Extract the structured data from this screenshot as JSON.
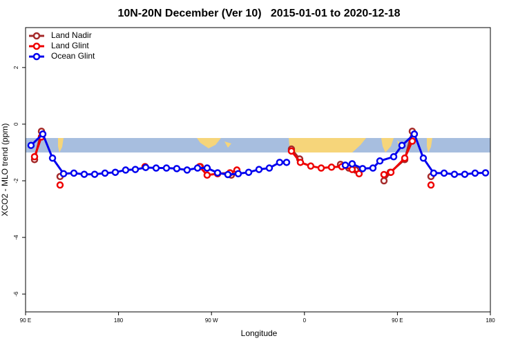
{
  "chart_data": {
    "type": "line",
    "title": "10N-20N December (Ver 10)   2015-01-01 to 2020-12-18",
    "x_label": "Longitude",
    "y_label": "XCO2 - MLO trend (ppm)",
    "xlim": [
      90,
      540
    ],
    "ylim": [
      -6.63,
      3.41
    ],
    "xticks": [
      {
        "value": 90,
        "label": "90 E"
      },
      180,
      {
        "value": 270,
        "label": "90 W"
      },
      {
        "value": 360,
        "label": "0"
      },
      {
        "value": 450,
        "label": "90 E"
      },
      {
        "value": 540,
        "label": "180"
      }
    ],
    "yticks": [
      -6,
      -4,
      -2,
      0,
      2
    ],
    "legend": "top-left",
    "series": [
      {
        "name": "Land Nadir",
        "color": "#a52a2a",
        "x": [
          98.7,
          105.4,
          null,
          123.4,
          null,
          259.2,
          null,
          289.2,
          null,
          347.4,
          355.4,
          null,
          394.9,
          402.9,
          409.6,
          null,
          437.0,
          443.0,
          457.1,
          464.4,
          null,
          482.5
        ],
        "values": [
          -1.25,
          -0.25,
          null,
          -1.85,
          null,
          -1.5,
          null,
          -1.8,
          null,
          -0.88,
          -1.23,
          null,
          -1.42,
          -1.55,
          -1.62,
          null,
          -2.0,
          -1.7,
          -1.25,
          -0.25,
          null,
          -1.85
        ]
      },
      {
        "name": "Land Glint",
        "color": "#ee0000",
        "x": [
          98.7,
          105.4,
          null,
          123.4,
          null,
          205.7,
          null,
          258.5,
          265.8,
          275.9,
          287.9,
          294.6,
          null,
          347.4,
          356.1,
          366.1,
          376.2,
          386.2,
          396.2,
          406.2,
          412.9,
          null,
          437.0,
          443.7,
          457.1,
          464.4,
          null,
          482.5
        ],
        "values": [
          -1.15,
          -0.45,
          null,
          -2.15,
          null,
          -1.5,
          null,
          -1.5,
          -1.8,
          -1.75,
          -1.72,
          -1.62,
          null,
          -0.95,
          -1.35,
          -1.48,
          -1.55,
          -1.52,
          -1.5,
          -1.6,
          -1.75,
          null,
          -1.78,
          -1.7,
          -1.2,
          -0.6,
          null,
          -2.15
        ]
      },
      {
        "name": "Ocean Glint",
        "color": "#0000ee",
        "x": [
          95.3,
          106.7,
          116.1,
          126.8,
          136.8,
          146.8,
          156.9,
          166.9,
          176.9,
          186.9,
          196.3,
          206.3,
          216.4,
          226.4,
          236.4,
          246.4,
          256.5,
          265.8,
          275.9,
          285.9,
          295.9,
          306.0,
          316.0,
          326.0,
          336.0,
          342.7,
          null,
          399.6,
          406.2,
          416.3,
          426.3,
          433.0,
          446.4,
          454.4,
          466.4,
          475.1,
          485.1,
          495.2,
          505.2,
          515.2,
          525.2,
          535.3
        ],
        "values": [
          -0.75,
          -0.35,
          -1.2,
          -1.75,
          -1.73,
          -1.77,
          -1.77,
          -1.73,
          -1.7,
          -1.62,
          -1.6,
          -1.53,
          -1.55,
          -1.55,
          -1.57,
          -1.62,
          -1.55,
          -1.55,
          -1.72,
          -1.78,
          -1.75,
          -1.7,
          -1.6,
          -1.55,
          -1.35,
          -1.35,
          null,
          -1.45,
          -1.4,
          -1.57,
          -1.55,
          -1.3,
          -1.15,
          -0.75,
          -0.35,
          -1.2,
          -1.73,
          -1.73,
          -1.77,
          -1.77,
          -1.73,
          -1.72
        ]
      }
    ]
  }
}
